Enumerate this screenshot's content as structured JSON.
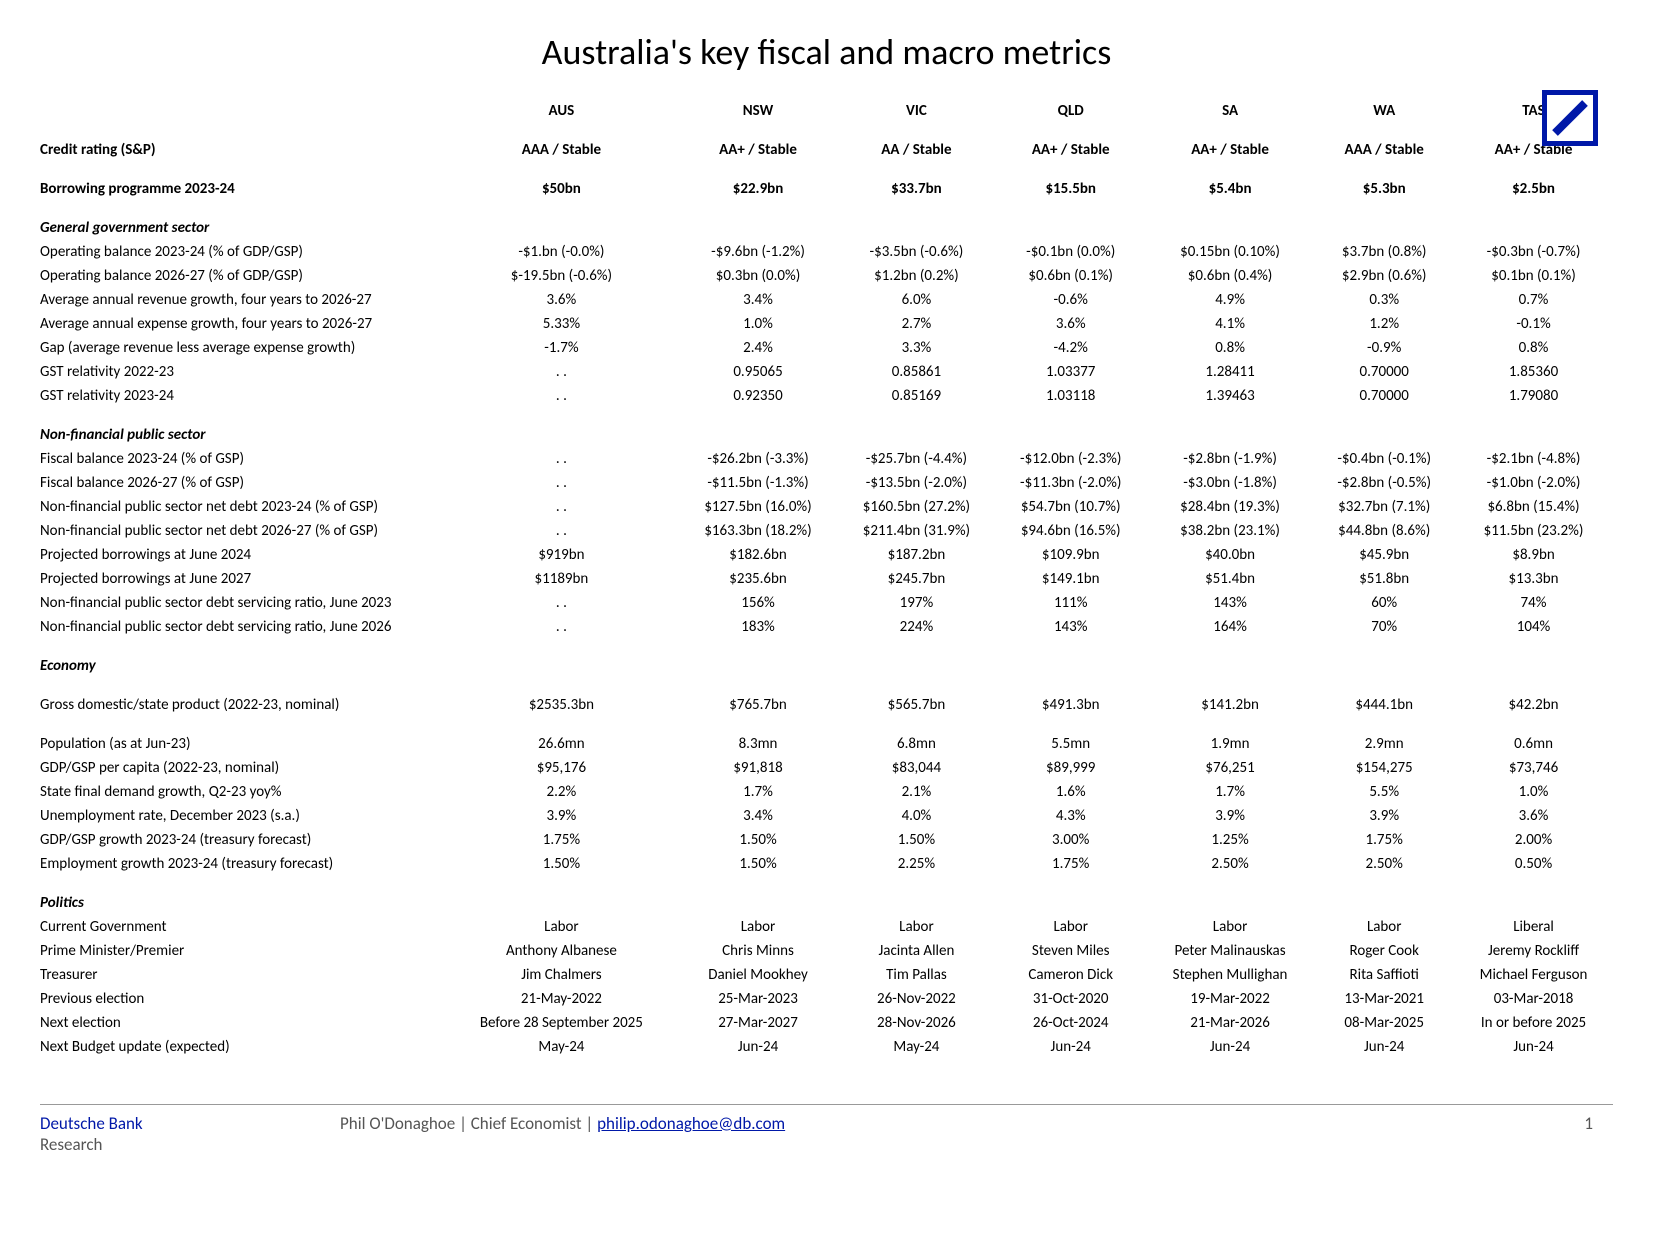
{
  "title": "Australia's key fiscal and macro metrics",
  "columns": [
    "AUS",
    "NSW",
    "VIC",
    "QLD",
    "SA",
    "WA",
    "TAS"
  ],
  "rows": [
    {
      "type": "boldrow",
      "label": "Credit rating (S&P)",
      "cells": [
        "AAA / Stable",
        "AA+ / Stable",
        "AA / Stable",
        "AA+ / Stable",
        "AA+ / Stable",
        "AAA / Stable",
        "AA+ / Stable"
      ]
    },
    {
      "type": "section",
      "label": "Borrowing programme 2023-24",
      "cells": [
        "$50bn",
        "$22.9bn",
        "$33.7bn",
        "$15.5bn",
        "$5.4bn",
        "$5.3bn",
        "$2.5bn"
      ],
      "bold": true
    },
    {
      "type": "section",
      "label": "General government sector",
      "cells": [
        "",
        "",
        "",
        "",
        "",
        "",
        ""
      ]
    },
    {
      "type": "row",
      "label": "Operating balance 2023-24 (% of GDP/GSP)",
      "cells": [
        "-$1.bn (-0.0%)",
        "-$9.6bn (-1.2%)",
        "-$3.5bn (-0.6%)",
        "-$0.1bn (0.0%)",
        "$0.15bn (0.10%)",
        "$3.7bn (0.8%)",
        "-$0.3bn (-0.7%)"
      ]
    },
    {
      "type": "row",
      "label": "Operating balance 2026-27 (% of GDP/GSP)",
      "cells": [
        "$-19.5bn (-0.6%)",
        "$0.3bn (0.0%)",
        "$1.2bn (0.2%)",
        "$0.6bn (0.1%)",
        "$0.6bn (0.4%)",
        "$2.9bn (0.6%)",
        "$0.1bn (0.1%)"
      ]
    },
    {
      "type": "row",
      "label": "Average annual revenue growth, four years to 2026-27",
      "cells": [
        "3.6%",
        "3.4%",
        "6.0%",
        "-0.6%",
        "4.9%",
        "0.3%",
        "0.7%"
      ]
    },
    {
      "type": "row",
      "label": "Average annual expense growth, four years to 2026-27",
      "cells": [
        "5.33%",
        "1.0%",
        "2.7%",
        "3.6%",
        "4.1%",
        "1.2%",
        "-0.1%"
      ]
    },
    {
      "type": "row",
      "label": "Gap (average revenue less average expense growth)",
      "cells": [
        "-1.7%",
        "2.4%",
        "3.3%",
        "-4.2%",
        "0.8%",
        "-0.9%",
        "0.8%"
      ]
    },
    {
      "type": "row",
      "label": "GST relativity 2022-23",
      "cells": [
        ". .",
        "0.95065",
        "0.85861",
        "1.03377",
        "1.28411",
        "0.70000",
        "1.85360"
      ]
    },
    {
      "type": "row",
      "label": "GST relativity 2023-24",
      "cells": [
        ". .",
        "0.92350",
        "0.85169",
        "1.03118",
        "1.39463",
        "0.70000",
        "1.79080"
      ]
    },
    {
      "type": "section",
      "label": "Non-financial public sector",
      "cells": [
        "",
        "",
        "",
        "",
        "",
        "",
        ""
      ]
    },
    {
      "type": "row",
      "label": "Fiscal balance 2023-24 (% of GSP)",
      "cells": [
        ". .",
        "-$26.2bn (-3.3%)",
        "-$25.7bn (-4.4%)",
        "-$12.0bn (-2.3%)",
        "-$2.8bn (-1.9%)",
        "-$0.4bn (-0.1%)",
        "-$2.1bn (-4.8%)"
      ]
    },
    {
      "type": "row",
      "label": "Fiscal balance 2026-27 (% of GSP)",
      "cells": [
        ". .",
        "-$11.5bn (-1.3%)",
        "-$13.5bn (-2.0%)",
        "-$11.3bn (-2.0%)",
        "-$3.0bn (-1.8%)",
        "-$2.8bn (-0.5%)",
        "-$1.0bn (-2.0%)"
      ]
    },
    {
      "type": "row",
      "label": "Non-financial public sector net debt 2023-24 (% of GSP)",
      "cells": [
        ". .",
        "$127.5bn (16.0%)",
        "$160.5bn (27.2%)",
        "$54.7bn (10.7%)",
        "$28.4bn (19.3%)",
        "$32.7bn (7.1%)",
        "$6.8bn (15.4%)"
      ]
    },
    {
      "type": "row",
      "label": "Non-financial public sector net debt 2026-27 (% of GSP)",
      "cells": [
        ". .",
        "$163.3bn (18.2%)",
        "$211.4bn (31.9%)",
        "$94.6bn (16.5%)",
        "$38.2bn (23.1%)",
        "$44.8bn (8.6%)",
        "$11.5bn (23.2%)"
      ]
    },
    {
      "type": "row",
      "label": "Projected borrowings at June 2024",
      "cells": [
        "$919bn",
        "$182.6bn",
        "$187.2bn",
        "$109.9bn",
        "$40.0bn",
        "$45.9bn",
        "$8.9bn"
      ]
    },
    {
      "type": "row",
      "label": "Projected borrowings at June 2027",
      "cells": [
        "$1189bn",
        "$235.6bn",
        "$245.7bn",
        "$149.1bn",
        "$51.4bn",
        "$51.8bn",
        "$13.3bn"
      ]
    },
    {
      "type": "row",
      "label": "Non-financial public sector debt servicing ratio, June 2023",
      "cells": [
        ". .",
        "156%",
        "197%",
        "111%",
        "143%",
        "60%",
        "74%"
      ]
    },
    {
      "type": "row",
      "label": "Non-financial public sector debt servicing ratio, June 2026",
      "cells": [
        ". .",
        "183%",
        "224%",
        "143%",
        "164%",
        "70%",
        "104%"
      ]
    },
    {
      "type": "boldital",
      "label": "Economy",
      "cells": [
        "",
        "",
        "",
        "",
        "",
        "",
        ""
      ]
    },
    {
      "type": "spacer",
      "label": "Gross domestic/state product (2022-23, nominal)",
      "cells": [
        "$2535.3bn",
        "$765.7bn",
        "$565.7bn",
        "$491.3bn",
        "$141.2bn",
        "$444.1bn",
        "$42.2bn"
      ]
    },
    {
      "type": "spacer",
      "label": "Population (as at Jun-23)",
      "cells": [
        "26.6mn",
        "8.3mn",
        "6.8mn",
        "5.5mn",
        "1.9mn",
        "2.9mn",
        "0.6mn"
      ]
    },
    {
      "type": "row",
      "label": "GDP/GSP per capita (2022-23, nominal)",
      "cells": [
        "$95,176",
        "$91,818",
        "$83,044",
        "$89,999",
        "$76,251",
        "$154,275",
        "$73,746"
      ]
    },
    {
      "type": "row",
      "label": "State final demand growth, Q2-23 yoy%",
      "cells": [
        "2.2%",
        "1.7%",
        "2.1%",
        "1.6%",
        "1.7%",
        "5.5%",
        "1.0%"
      ]
    },
    {
      "type": "row",
      "label": "Unemployment rate, December 2023 (s.a.)",
      "cells": [
        "3.9%",
        "3.4%",
        "4.0%",
        "4.3%",
        "3.9%",
        "3.9%",
        "3.6%"
      ]
    },
    {
      "type": "row",
      "label": "GDP/GSP growth 2023-24 (treasury forecast)",
      "cells": [
        "1.75%",
        "1.50%",
        "1.50%",
        "3.00%",
        "1.25%",
        "1.75%",
        "2.00%"
      ]
    },
    {
      "type": "row",
      "label": "Employment growth 2023-24 (treasury forecast)",
      "cells": [
        "1.50%",
        "1.50%",
        "2.25%",
        "1.75%",
        "2.50%",
        "2.50%",
        "0.50%"
      ]
    },
    {
      "type": "section",
      "label": "Politics",
      "cells": [
        "",
        "",
        "",
        "",
        "",
        "",
        ""
      ]
    },
    {
      "type": "row",
      "label": "Current Government",
      "cells": [
        "Labor",
        "Labor",
        "Labor",
        "Labor",
        "Labor",
        "Labor",
        "Liberal"
      ]
    },
    {
      "type": "row",
      "label": "Prime Minister/Premier",
      "cells": [
        "Anthony Albanese",
        "Chris Minns",
        "Jacinta Allen",
        "Steven Miles",
        "Peter Malinauskas",
        "Roger Cook",
        "Jeremy Rockliff"
      ]
    },
    {
      "type": "row",
      "label": "Treasurer",
      "cells": [
        "Jim Chalmers",
        "Daniel Mookhey",
        "Tim Pallas",
        "Cameron Dick",
        "Stephen Mullighan",
        "Rita Saffioti",
        "Michael Ferguson"
      ]
    },
    {
      "type": "row",
      "label": "Previous election",
      "cells": [
        "21-May-2022",
        "25-Mar-2023",
        "26-Nov-2022",
        "31-Oct-2020",
        "19-Mar-2022",
        "13-Mar-2021",
        "03-Mar-2018"
      ]
    },
    {
      "type": "row",
      "label": "Next election",
      "cells": [
        "Before 28 September 2025",
        "27-Mar-2027",
        "28-Nov-2026",
        "26-Oct-2024",
        "21-Mar-2026",
        "08-Mar-2025",
        "In or before 2025"
      ]
    },
    {
      "type": "row",
      "label": "Next Budget update (expected)",
      "cells": [
        "May-24",
        "Jun-24",
        "May-24",
        "Jun-24",
        "Jun-24",
        "Jun-24",
        "Jun-24"
      ]
    }
  ],
  "footer": {
    "brand1": "Deutsche Bank",
    "brand2": "Research",
    "author": "Phil O'Donaghoe | Chief Economist  |  ",
    "email": "philip.odonaghoe@db.com",
    "page": "1"
  },
  "colors": {
    "brand_blue": "#0018a8",
    "text": "#000000",
    "footer_gray": "#555555",
    "rule": "#999999"
  }
}
